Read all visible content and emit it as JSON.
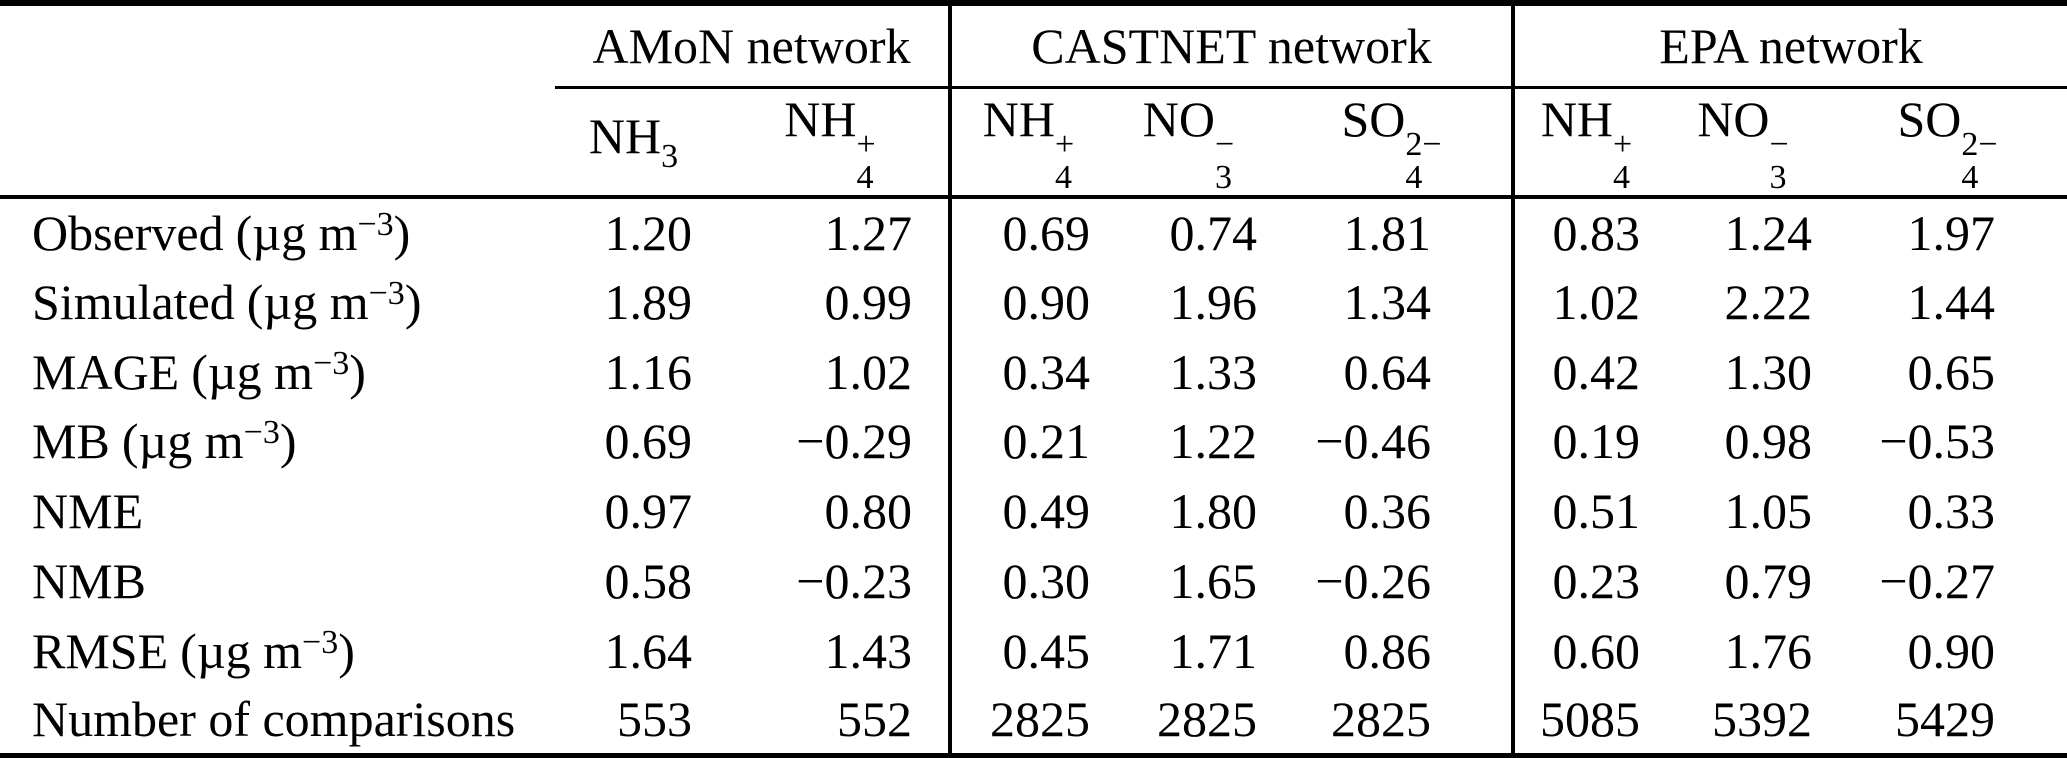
{
  "page": {
    "background_color": "#ffffff",
    "text_color": "#000000"
  },
  "table": {
    "network_groups": [
      {
        "label": "AMoN network",
        "colspan": 2
      },
      {
        "label": "CASTNET network",
        "colspan": 3
      },
      {
        "label": "EPA network",
        "colspan": 3
      }
    ],
    "species_columns": [
      {
        "base": "NH",
        "sup": "",
        "sub": "3",
        "group": "AMoN"
      },
      {
        "base": "NH",
        "sup": "+",
        "sub": "4",
        "group": "AMoN"
      },
      {
        "base": "NH",
        "sup": "+",
        "sub": "4",
        "group": "CASTNET"
      },
      {
        "base": "NO",
        "sup": "−",
        "sub": "3",
        "group": "CASTNET"
      },
      {
        "base": "SO",
        "sup": "2−",
        "sub": "4",
        "group": "CASTNET"
      },
      {
        "base": "NH",
        "sup": "+",
        "sub": "4",
        "group": "EPA"
      },
      {
        "base": "NO",
        "sup": "−",
        "sub": "3",
        "group": "EPA"
      },
      {
        "base": "SO",
        "sup": "2−",
        "sub": "4",
        "group": "EPA"
      }
    ],
    "unit": {
      "open": "(",
      "base": "µg m",
      "exp": "−3",
      "close": ")"
    },
    "rows": [
      {
        "metric": "Observed",
        "has_unit": true,
        "values": [
          "1.20",
          "1.27",
          "0.69",
          "0.74",
          "1.81",
          "0.83",
          "1.24",
          "1.97"
        ]
      },
      {
        "metric": "Simulated",
        "has_unit": true,
        "values": [
          "1.89",
          "0.99",
          "0.90",
          "1.96",
          "1.34",
          "1.02",
          "2.22",
          "1.44"
        ]
      },
      {
        "metric": "MAGE",
        "has_unit": true,
        "values": [
          "1.16",
          "1.02",
          "0.34",
          "1.33",
          "0.64",
          "0.42",
          "1.30",
          "0.65"
        ]
      },
      {
        "metric": "MB",
        "has_unit": true,
        "values": [
          "0.69",
          "−0.29",
          "0.21",
          "1.22",
          "−0.46",
          "0.19",
          "0.98",
          "−0.53"
        ]
      },
      {
        "metric": "NME",
        "has_unit": false,
        "values": [
          "0.97",
          "0.80",
          "0.49",
          "1.80",
          "0.36",
          "0.51",
          "1.05",
          "0.33"
        ]
      },
      {
        "metric": "NMB",
        "has_unit": false,
        "values": [
          "0.58",
          "−0.23",
          "0.30",
          "1.65",
          "−0.26",
          "0.23",
          "0.79",
          "−0.27"
        ]
      },
      {
        "metric": "RMSE",
        "has_unit": true,
        "values": [
          "1.64",
          "1.43",
          "0.45",
          "1.71",
          "0.86",
          "0.60",
          "1.76",
          "0.90"
        ]
      },
      {
        "metric": "Number of comparisons",
        "has_unit": false,
        "values": [
          "553",
          "552",
          "2825",
          "2825",
          "2825",
          "5085",
          "5392",
          "5429"
        ]
      }
    ]
  }
}
